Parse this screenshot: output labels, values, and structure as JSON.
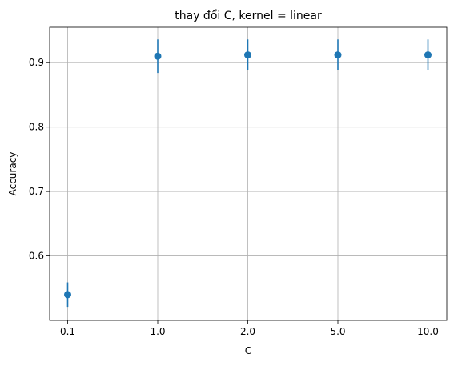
{
  "chart_data": {
    "type": "scatter",
    "title": "thay đổi C, kernel = linear",
    "xlabel": "C",
    "ylabel": "Accuracy",
    "categories": [
      "0.1",
      "1.0",
      "2.0",
      "5.0",
      "10.0"
    ],
    "series": [
      {
        "values": [
          0.54,
          0.91,
          0.912,
          0.912,
          0.912
        ],
        "errors": [
          0.019,
          0.026,
          0.024,
          0.024,
          0.024
        ]
      }
    ],
    "yticks": [
      0.6,
      0.7,
      0.8,
      0.9
    ],
    "ylim": [
      0.5,
      0.955
    ],
    "grid": true,
    "colors": {
      "series": "#1f77b4",
      "grid": "#b0b0b0"
    }
  }
}
